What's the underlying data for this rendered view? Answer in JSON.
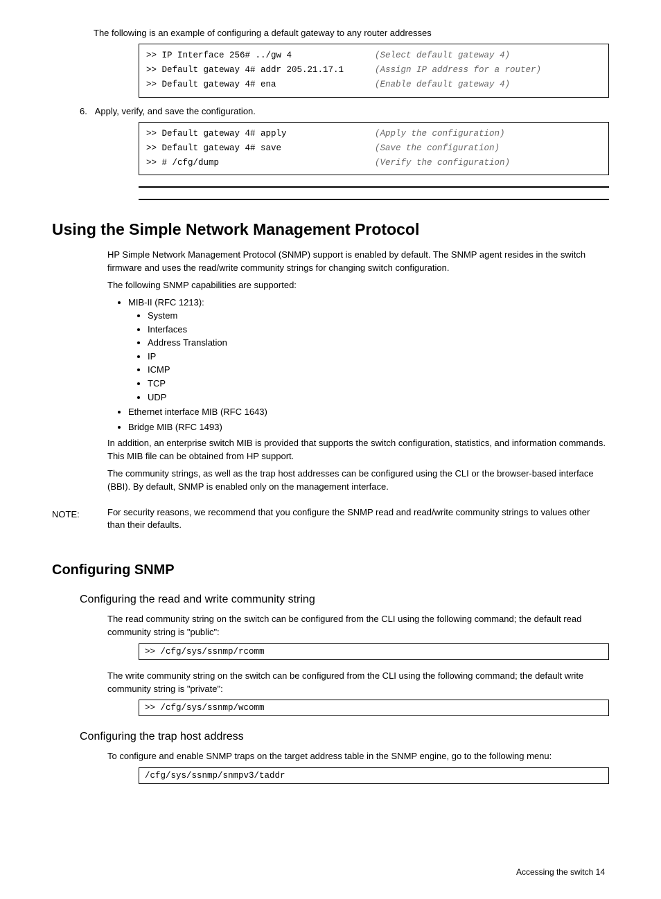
{
  "step_gateway_intro": "The following is an example of configuring a default gateway to any router addresses",
  "codebox1": [
    {
      "cmd": ">> IP Interface 256# ../gw 4",
      "desc": "(Select default gateway 4)"
    },
    {
      "cmd": ">> Default gateway 4# addr 205.21.17.1",
      "desc": "(Assign IP address for a router)"
    },
    {
      "cmd": ">> Default gateway 4# ena",
      "desc": "(Enable default gateway 4)"
    }
  ],
  "step6_label": "6.",
  "step6_text": "Apply, verify, and save the configuration.",
  "codebox2": [
    {
      "cmd": ">> Default gateway 4# apply",
      "desc": "(Apply the configuration)"
    },
    {
      "cmd": ">> Default gateway 4# save",
      "desc": "(Save the configuration)"
    },
    {
      "cmd": ">> # /cfg/dump",
      "desc": "(Verify the configuration)"
    }
  ],
  "h2": "Using the Simple Network Management Protocol",
  "p1": "HP Simple Network Management Protocol (SNMP) support is enabled by default. The SNMP agent resides in the switch firmware and uses the read/write community strings for changing switch configuration.",
  "p2": "The following SNMP capabilities are supported:",
  "mibs_intro": "MIB-II (RFC 1213):",
  "mibs": [
    "System",
    "Interfaces",
    "Address Translation",
    "IP",
    "ICMP",
    "TCP",
    "UDP"
  ],
  "bullets_tail": [
    "Ethernet interface MIB (RFC 1643)",
    "Bridge MIB (RFC 1493)"
  ],
  "p3": "In addition, an enterprise switch MIB is provided that supports the switch configuration, statistics, and information commands. This MIB file can be obtained from HP support.",
  "p4": "The community strings, as well as the trap host addresses can be configured using the CLI or the browser-based interface (BBI). By default, SNMP is enabled only on the management interface.",
  "note_label": "NOTE:",
  "note_text": "For security reasons, we recommend that you configure the SNMP read and read/write community strings to values other than their defaults.",
  "h3": "Configuring SNMP",
  "h4a": "Configuring the read and write community string",
  "p5": "The read community string on the switch can be configured from the CLI using the following command; the default read community string is \"public\":",
  "code_rcomm": ">> /cfg/sys/ssnmp/rcomm",
  "p6": "The write community string on the switch can be configured from the CLI using the following command; the default write community string is \"private\":",
  "code_wcomm": ">> /cfg/sys/ssnmp/wcomm",
  "h4b": "Configuring the trap host address",
  "p7": "To configure and enable SNMP traps on the target address table in the SNMP engine, go to the following menu:",
  "code_taddr": "/cfg/sys/ssnmp/snmpv3/taddr",
  "footer_left": "Accessing the switch   14",
  "colors": {
    "text": "#000000",
    "desc_text": "#666666",
    "border": "#000000",
    "bg": "#ffffff"
  },
  "fonts": {
    "body": "Arial",
    "mono": "Courier New",
    "body_size_pt": 10,
    "h2_size_pt": 17,
    "h3_size_pt": 15,
    "h4_size_pt": 12,
    "mono_size_pt": 9.5
  }
}
